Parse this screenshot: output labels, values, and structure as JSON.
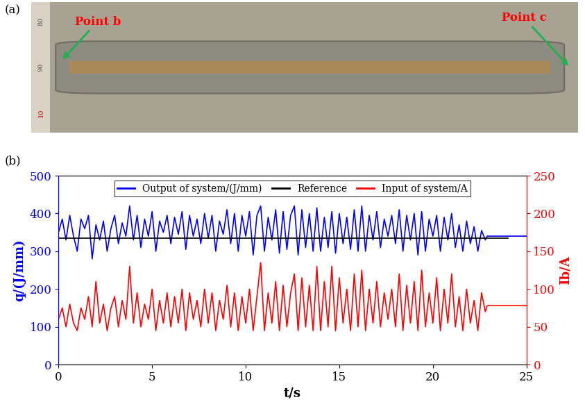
{
  "photo": {
    "panel_label": "(a)",
    "annotations": [
      "Point b",
      "Point c"
    ],
    "ruler_labels": [
      "80",
      "90",
      "10"
    ]
  },
  "chart_data": {
    "type": "line",
    "panel_label": "(b)",
    "x_label": "t/s",
    "y_label": "q/(J/mm)",
    "y2_label": "Ib/A",
    "xlim": [
      0,
      25
    ],
    "xticks": [
      0,
      5,
      10,
      15,
      20,
      25
    ],
    "ylim": [
      0,
      500
    ],
    "yticks": [
      0,
      100,
      200,
      300,
      400,
      500
    ],
    "y2lim": [
      0,
      250
    ],
    "y2ticks": [
      0,
      50,
      100,
      150,
      200,
      250
    ],
    "legend": "upper center",
    "grid": false,
    "x": [
      0,
      0.2,
      0.4,
      0.6,
      0.8,
      1.0,
      1.2,
      1.4,
      1.6,
      1.8,
      2.0,
      2.2,
      2.4,
      2.6,
      2.8,
      3.0,
      3.2,
      3.4,
      3.6,
      3.8,
      4.0,
      4.2,
      4.4,
      4.6,
      4.8,
      5.0,
      5.2,
      5.4,
      5.6,
      5.8,
      6.0,
      6.2,
      6.4,
      6.6,
      6.8,
      7.0,
      7.2,
      7.4,
      7.6,
      7.8,
      8.0,
      8.2,
      8.4,
      8.6,
      8.8,
      9.0,
      9.2,
      9.4,
      9.6,
      9.8,
      10.0,
      10.2,
      10.4,
      10.6,
      10.8,
      11.0,
      11.2,
      11.4,
      11.6,
      11.8,
      12.0,
      12.2,
      12.4,
      12.6,
      12.8,
      13.0,
      13.2,
      13.4,
      13.6,
      13.8,
      14.0,
      14.2,
      14.4,
      14.6,
      14.8,
      15.0,
      15.2,
      15.4,
      15.6,
      15.8,
      16.0,
      16.2,
      16.4,
      16.6,
      16.8,
      17.0,
      17.2,
      17.4,
      17.6,
      17.8,
      18.0,
      18.2,
      18.4,
      18.6,
      18.8,
      19.0,
      19.2,
      19.4,
      19.6,
      19.8,
      20.0,
      20.2,
      20.4,
      20.6,
      20.8,
      21.0,
      21.2,
      21.4,
      21.6,
      21.8,
      22.0,
      22.2,
      22.4,
      22.6,
      22.8,
      22.9,
      25
    ],
    "series": [
      {
        "name": "Output of system/(J/mm)",
        "color": "#0000ff",
        "axis": "y",
        "values": [
          350,
          385,
          330,
          395,
          340,
          300,
          385,
          360,
          395,
          280,
          370,
          330,
          380,
          300,
          360,
          395,
          320,
          375,
          340,
          420,
          330,
          395,
          310,
          385,
          340,
          405,
          300,
          380,
          350,
          395,
          320,
          390,
          345,
          405,
          305,
          395,
          340,
          385,
          320,
          400,
          335,
          395,
          300,
          380,
          345,
          410,
          320,
          400,
          300,
          395,
          340,
          405,
          290,
          395,
          420,
          300,
          390,
          330,
          410,
          295,
          405,
          305,
          395,
          420,
          290,
          410,
          310,
          400,
          300,
          415,
          300,
          390,
          310,
          405,
          295,
          400,
          320,
          390,
          305,
          410,
          300,
          420,
          300,
          395,
          330,
          405,
          310,
          385,
          340,
          395,
          320,
          410,
          300,
          395,
          330,
          400,
          290,
          405,
          300,
          385,
          340,
          395,
          300,
          390,
          330,
          400,
          310,
          370,
          300,
          380,
          320,
          365,
          300,
          355,
          330,
          340,
          340
        ]
      },
      {
        "name": "Reference",
        "color": "#000000",
        "axis": "y",
        "x": [
          0,
          24
        ],
        "values": [
          335,
          335
        ]
      },
      {
        "name": "Input of system/A",
        "color": "#ff0000",
        "axis": "y2",
        "values": [
          60,
          75,
          50,
          80,
          55,
          45,
          75,
          60,
          90,
          50,
          110,
          55,
          80,
          45,
          75,
          90,
          50,
          85,
          60,
          130,
          55,
          95,
          50,
          80,
          60,
          100,
          45,
          85,
          55,
          95,
          50,
          90,
          55,
          100,
          45,
          95,
          60,
          85,
          50,
          100,
          55,
          95,
          45,
          85,
          60,
          105,
          50,
          95,
          45,
          90,
          55,
          100,
          45,
          90,
          135,
          45,
          95,
          55,
          110,
          45,
          105,
          50,
          95,
          120,
          45,
          115,
          50,
          105,
          45,
          130,
          45,
          110,
          50,
          130,
          45,
          115,
          55,
          100,
          45,
          120,
          50,
          125,
          45,
          100,
          55,
          110,
          50,
          95,
          60,
          100,
          50,
          120,
          45,
          105,
          55,
          110,
          45,
          125,
          50,
          95,
          55,
          115,
          45,
          100,
          55,
          120,
          50,
          90,
          45,
          100,
          55,
          85,
          45,
          95,
          70,
          78,
          78
        ]
      }
    ]
  }
}
